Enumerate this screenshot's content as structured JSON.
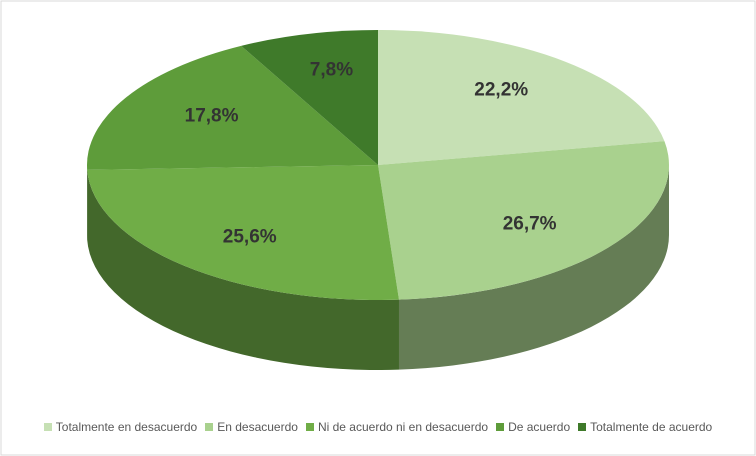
{
  "chart_data": {
    "type": "pie3d",
    "categories": [
      "Totalmente en desacuerdo",
      "En desacuerdo",
      "Ni de acuerdo ni en desacuerdo",
      "De acuerdo",
      "Totalmente de acuerdo"
    ],
    "values": [
      22.2,
      26.7,
      25.6,
      17.8,
      7.8
    ],
    "value_labels": [
      "22,2%",
      "26,7%",
      "25,6%",
      "17,8%",
      "7,8%"
    ],
    "colors": [
      "#c6e0b4",
      "#a9d18e",
      "#70ad47",
      "#5e9c3a",
      "#3f7a2a"
    ],
    "legend": "bottom"
  }
}
